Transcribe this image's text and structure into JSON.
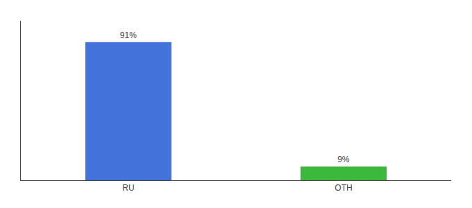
{
  "chart_data": {
    "type": "bar",
    "categories": [
      "RU",
      "OTH"
    ],
    "values": [
      91,
      9
    ],
    "value_labels": [
      "91%",
      "9%"
    ],
    "colors": [
      "#4472db",
      "#3cb83c"
    ],
    "data_labels": true,
    "ylim": [
      0,
      105
    ],
    "grid": false,
    "tick_labels": "x"
  }
}
